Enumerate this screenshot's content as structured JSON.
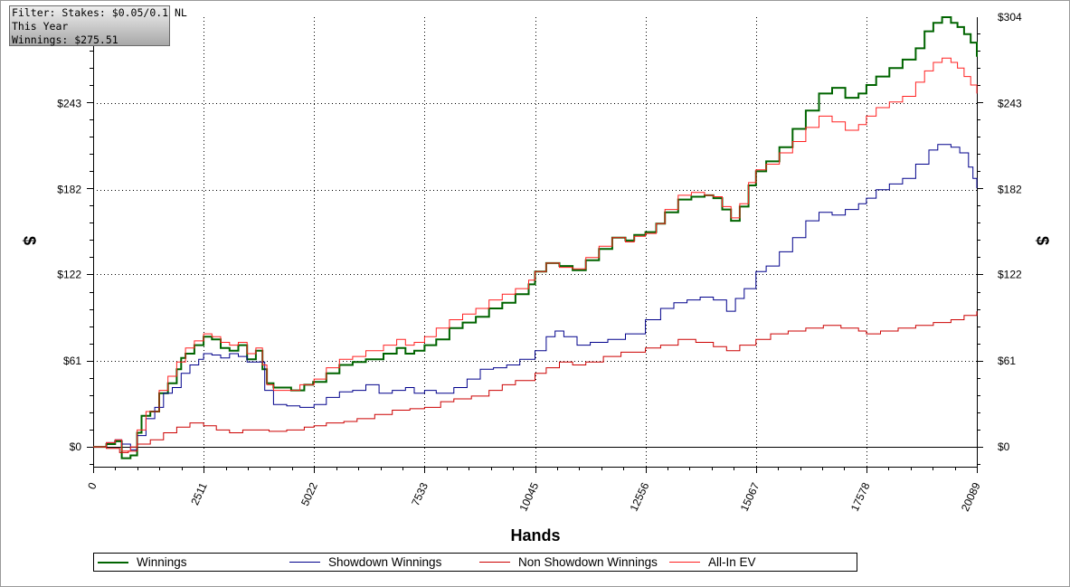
{
  "info_box": {
    "line1": "Filter: Stakes: $0.05/0.1 NL",
    "line2": "This Year",
    "line3": "Winnings: $275.51"
  },
  "chart_data": {
    "type": "line",
    "xlabel": "Hands",
    "ylabel": "$",
    "x_ticks": [
      0,
      2511,
      5022,
      7533,
      10045,
      12556,
      15067,
      17578,
      20089
    ],
    "y_ticks": [
      0,
      61,
      122,
      182,
      243,
      304
    ],
    "y_tick_labels": [
      "$0",
      "$61",
      "$122",
      "$182",
      "$243",
      "$304"
    ],
    "xlim": [
      0,
      20089
    ],
    "ylim": [
      -14,
      304
    ],
    "grid": true,
    "legend_position": "bottom",
    "series": [
      {
        "name": "Winnings",
        "color": "#006400",
        "stroke_width": 2,
        "points": [
          [
            0,
            0
          ],
          [
            300,
            2
          ],
          [
            500,
            4
          ],
          [
            650,
            -8
          ],
          [
            850,
            -6
          ],
          [
            1000,
            10
          ],
          [
            1100,
            22
          ],
          [
            1300,
            25
          ],
          [
            1500,
            38
          ],
          [
            1700,
            45
          ],
          [
            1900,
            55
          ],
          [
            2000,
            63
          ],
          [
            2100,
            66
          ],
          [
            2300,
            72
          ],
          [
            2511,
            78
          ],
          [
            2700,
            76
          ],
          [
            2900,
            70
          ],
          [
            3100,
            68
          ],
          [
            3300,
            72
          ],
          [
            3500,
            62
          ],
          [
            3700,
            68
          ],
          [
            3850,
            55
          ],
          [
            3950,
            45
          ],
          [
            4100,
            42
          ],
          [
            4500,
            40
          ],
          [
            4800,
            44
          ],
          [
            5000,
            46
          ],
          [
            5300,
            52
          ],
          [
            5600,
            58
          ],
          [
            5900,
            60
          ],
          [
            6200,
            62
          ],
          [
            6600,
            66
          ],
          [
            6900,
            70
          ],
          [
            7100,
            66
          ],
          [
            7300,
            68
          ],
          [
            7533,
            72
          ],
          [
            7800,
            76
          ],
          [
            8100,
            84
          ],
          [
            8400,
            88
          ],
          [
            8700,
            92
          ],
          [
            9000,
            98
          ],
          [
            9300,
            102
          ],
          [
            9600,
            108
          ],
          [
            9900,
            115
          ],
          [
            10045,
            124
          ],
          [
            10300,
            130
          ],
          [
            10600,
            128
          ],
          [
            10900,
            125
          ],
          [
            11200,
            132
          ],
          [
            11500,
            140
          ],
          [
            11800,
            148
          ],
          [
            12100,
            146
          ],
          [
            12300,
            150
          ],
          [
            12556,
            152
          ],
          [
            12800,
            158
          ],
          [
            13000,
            166
          ],
          [
            13300,
            175
          ],
          [
            13600,
            177
          ],
          [
            13900,
            178
          ],
          [
            14100,
            176
          ],
          [
            14300,
            168
          ],
          [
            14500,
            160
          ],
          [
            14700,
            170
          ],
          [
            14900,
            185
          ],
          [
            15067,
            195
          ],
          [
            15300,
            202
          ],
          [
            15600,
            212
          ],
          [
            15900,
            225
          ],
          [
            16200,
            238
          ],
          [
            16500,
            250
          ],
          [
            16800,
            254
          ],
          [
            17100,
            247
          ],
          [
            17400,
            250
          ],
          [
            17578,
            256
          ],
          [
            17800,
            262
          ],
          [
            18100,
            268
          ],
          [
            18400,
            274
          ],
          [
            18700,
            282
          ],
          [
            18900,
            294
          ],
          [
            19100,
            300
          ],
          [
            19300,
            304
          ],
          [
            19500,
            300
          ],
          [
            19650,
            297
          ],
          [
            19800,
            292
          ],
          [
            19950,
            286
          ],
          [
            20089,
            276
          ]
        ]
      },
      {
        "name": "Showdown Winnings",
        "color": "#00008b",
        "stroke_width": 1,
        "points": [
          [
            0,
            0
          ],
          [
            300,
            3
          ],
          [
            500,
            5
          ],
          [
            650,
            2
          ],
          [
            850,
            -2
          ],
          [
            1000,
            8
          ],
          [
            1200,
            20
          ],
          [
            1400,
            28
          ],
          [
            1600,
            38
          ],
          [
            1800,
            42
          ],
          [
            2000,
            52
          ],
          [
            2200,
            58
          ],
          [
            2400,
            62
          ],
          [
            2511,
            66
          ],
          [
            2700,
            65
          ],
          [
            2900,
            63
          ],
          [
            3100,
            66
          ],
          [
            3300,
            64
          ],
          [
            3500,
            60
          ],
          [
            3700,
            60
          ],
          [
            3900,
            40
          ],
          [
            4100,
            30
          ],
          [
            4400,
            29
          ],
          [
            4700,
            28
          ],
          [
            5022,
            30
          ],
          [
            5300,
            35
          ],
          [
            5600,
            39
          ],
          [
            5900,
            40
          ],
          [
            6200,
            44
          ],
          [
            6500,
            38
          ],
          [
            6800,
            40
          ],
          [
            7100,
            42
          ],
          [
            7300,
            38
          ],
          [
            7533,
            40
          ],
          [
            7800,
            38
          ],
          [
            8000,
            38
          ],
          [
            8200,
            42
          ],
          [
            8500,
            48
          ],
          [
            8800,
            55
          ],
          [
            9100,
            56
          ],
          [
            9400,
            58
          ],
          [
            9700,
            62
          ],
          [
            10045,
            68
          ],
          [
            10300,
            78
          ],
          [
            10500,
            82
          ],
          [
            10700,
            78
          ],
          [
            11000,
            72
          ],
          [
            11300,
            74
          ],
          [
            11700,
            76
          ],
          [
            12100,
            80
          ],
          [
            12556,
            90
          ],
          [
            12900,
            98
          ],
          [
            13200,
            102
          ],
          [
            13500,
            104
          ],
          [
            13800,
            106
          ],
          [
            14100,
            104
          ],
          [
            14400,
            96
          ],
          [
            14600,
            105
          ],
          [
            14800,
            112
          ],
          [
            15067,
            124
          ],
          [
            15300,
            128
          ],
          [
            15600,
            138
          ],
          [
            15900,
            148
          ],
          [
            16200,
            160
          ],
          [
            16500,
            166
          ],
          [
            16800,
            164
          ],
          [
            17100,
            168
          ],
          [
            17400,
            172
          ],
          [
            17578,
            176
          ],
          [
            17800,
            182
          ],
          [
            18100,
            186
          ],
          [
            18400,
            190
          ],
          [
            18700,
            200
          ],
          [
            19000,
            210
          ],
          [
            19200,
            214
          ],
          [
            19500,
            212
          ],
          [
            19700,
            208
          ],
          [
            19900,
            198
          ],
          [
            20000,
            190
          ],
          [
            20089,
            183
          ]
        ]
      },
      {
        "name": "Non Showdown Winnings",
        "color": "#cc0000",
        "stroke_width": 1,
        "points": [
          [
            0,
            0
          ],
          [
            300,
            -1
          ],
          [
            600,
            -4
          ],
          [
            800,
            -3
          ],
          [
            1000,
            2
          ],
          [
            1300,
            5
          ],
          [
            1600,
            10
          ],
          [
            1900,
            14
          ],
          [
            2200,
            17
          ],
          [
            2511,
            15
          ],
          [
            2800,
            12
          ],
          [
            3100,
            10
          ],
          [
            3400,
            12
          ],
          [
            3700,
            12
          ],
          [
            4000,
            11
          ],
          [
            4400,
            12
          ],
          [
            4800,
            14
          ],
          [
            5022,
            15
          ],
          [
            5300,
            17
          ],
          [
            5700,
            18
          ],
          [
            6000,
            20
          ],
          [
            6400,
            23
          ],
          [
            6800,
            26
          ],
          [
            7200,
            27
          ],
          [
            7533,
            28
          ],
          [
            7900,
            32
          ],
          [
            8200,
            34
          ],
          [
            8600,
            36
          ],
          [
            9000,
            40
          ],
          [
            9300,
            44
          ],
          [
            9600,
            47
          ],
          [
            10045,
            52
          ],
          [
            10300,
            56
          ],
          [
            10600,
            60
          ],
          [
            10900,
            58
          ],
          [
            11200,
            60
          ],
          [
            11600,
            64
          ],
          [
            12000,
            67
          ],
          [
            12556,
            70
          ],
          [
            12900,
            72
          ],
          [
            13300,
            76
          ],
          [
            13700,
            74
          ],
          [
            14100,
            71
          ],
          [
            14400,
            68
          ],
          [
            14700,
            72
          ],
          [
            15067,
            76
          ],
          [
            15400,
            80
          ],
          [
            15800,
            82
          ],
          [
            16200,
            84
          ],
          [
            16600,
            86
          ],
          [
            17000,
            84
          ],
          [
            17400,
            82
          ],
          [
            17578,
            80
          ],
          [
            17900,
            82
          ],
          [
            18300,
            84
          ],
          [
            18700,
            86
          ],
          [
            19100,
            88
          ],
          [
            19500,
            90
          ],
          [
            19800,
            93
          ],
          [
            20089,
            96
          ]
        ]
      },
      {
        "name": "All-In EV",
        "color": "#ff2020",
        "stroke_width": 1,
        "points": [
          [
            0,
            0
          ],
          [
            300,
            3
          ],
          [
            500,
            5
          ],
          [
            650,
            -3
          ],
          [
            850,
            0
          ],
          [
            1000,
            12
          ],
          [
            1200,
            25
          ],
          [
            1500,
            40
          ],
          [
            1700,
            50
          ],
          [
            1900,
            60
          ],
          [
            2100,
            70
          ],
          [
            2300,
            75
          ],
          [
            2511,
            80
          ],
          [
            2700,
            78
          ],
          [
            2900,
            74
          ],
          [
            3100,
            72
          ],
          [
            3300,
            74
          ],
          [
            3500,
            66
          ],
          [
            3700,
            70
          ],
          [
            3850,
            58
          ],
          [
            3950,
            44
          ],
          [
            4100,
            40
          ],
          [
            4400,
            40
          ],
          [
            4700,
            44
          ],
          [
            5022,
            48
          ],
          [
            5300,
            56
          ],
          [
            5600,
            62
          ],
          [
            5900,
            64
          ],
          [
            6200,
            68
          ],
          [
            6600,
            72
          ],
          [
            6900,
            76
          ],
          [
            7100,
            72
          ],
          [
            7300,
            74
          ],
          [
            7533,
            78
          ],
          [
            7800,
            84
          ],
          [
            8100,
            90
          ],
          [
            8400,
            94
          ],
          [
            8700,
            98
          ],
          [
            9000,
            104
          ],
          [
            9300,
            108
          ],
          [
            9600,
            112
          ],
          [
            9900,
            118
          ],
          [
            10045,
            124
          ],
          [
            10300,
            130
          ],
          [
            10600,
            127
          ],
          [
            10900,
            126
          ],
          [
            11200,
            134
          ],
          [
            11500,
            142
          ],
          [
            11800,
            148
          ],
          [
            12100,
            145
          ],
          [
            12300,
            149
          ],
          [
            12556,
            151
          ],
          [
            12800,
            158
          ],
          [
            13000,
            168
          ],
          [
            13300,
            178
          ],
          [
            13600,
            180
          ],
          [
            13900,
            178
          ],
          [
            14100,
            177
          ],
          [
            14300,
            170
          ],
          [
            14500,
            162
          ],
          [
            14700,
            172
          ],
          [
            14900,
            187
          ],
          [
            15067,
            196
          ],
          [
            15300,
            200
          ],
          [
            15600,
            208
          ],
          [
            15900,
            216
          ],
          [
            16200,
            226
          ],
          [
            16500,
            234
          ],
          [
            16800,
            230
          ],
          [
            17100,
            224
          ],
          [
            17400,
            228
          ],
          [
            17578,
            234
          ],
          [
            17800,
            240
          ],
          [
            18100,
            244
          ],
          [
            18400,
            248
          ],
          [
            18700,
            258
          ],
          [
            18900,
            266
          ],
          [
            19100,
            272
          ],
          [
            19300,
            275
          ],
          [
            19500,
            272
          ],
          [
            19650,
            268
          ],
          [
            19800,
            262
          ],
          [
            19950,
            256
          ],
          [
            20089,
            250
          ]
        ]
      }
    ]
  }
}
